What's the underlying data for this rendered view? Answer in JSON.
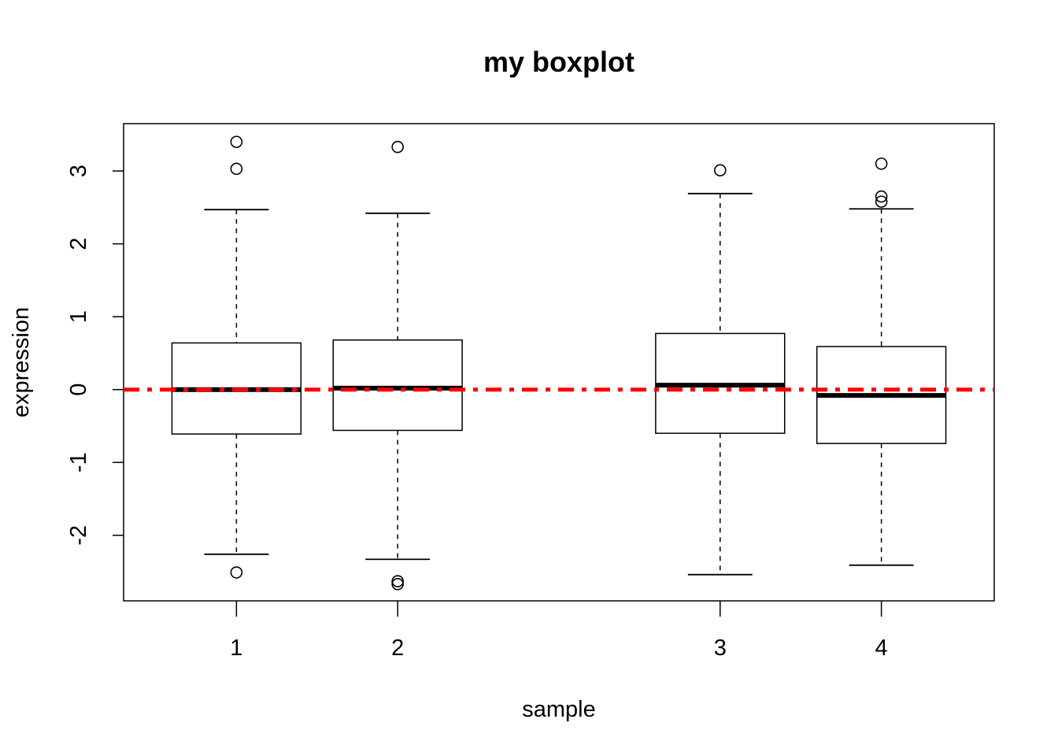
{
  "chart_data": {
    "type": "boxplot",
    "title": "my boxplot",
    "xlabel": "sample",
    "ylabel": "expression",
    "xlim": [
      0.3,
      5.7
    ],
    "ylim": [
      -2.9,
      3.65
    ],
    "y_ticks": [
      -2,
      -1,
      0,
      1,
      2,
      3
    ],
    "x_ticks": [
      {
        "label": "1",
        "at": 1
      },
      {
        "label": "2",
        "at": 2
      },
      {
        "label": "3",
        "at": 4
      },
      {
        "label": "4",
        "at": 5
      }
    ],
    "box_width": 0.8,
    "boxes": [
      {
        "label": "1",
        "at": 1,
        "whisker_low": -2.26,
        "q1": -0.61,
        "median": 0.0,
        "q3": 0.64,
        "whisker_high": 2.47,
        "outliers": [
          3.4,
          3.03,
          -2.51
        ]
      },
      {
        "label": "2",
        "at": 2,
        "whisker_low": -2.33,
        "q1": -0.56,
        "median": 0.02,
        "q3": 0.68,
        "whisker_high": 2.42,
        "outliers": [
          3.33,
          -2.63,
          -2.67
        ]
      },
      {
        "label": "3",
        "at": 4,
        "whisker_low": -2.54,
        "q1": -0.6,
        "median": 0.06,
        "q3": 0.77,
        "whisker_high": 2.69,
        "outliers": [
          3.01
        ]
      },
      {
        "label": "4",
        "at": 5,
        "whisker_low": -2.41,
        "q1": -0.74,
        "median": -0.08,
        "q3": 0.59,
        "whisker_high": 2.48,
        "outliers": [
          3.1,
          2.65,
          2.58
        ]
      }
    ],
    "reference_line": {
      "y": 0,
      "color": "#ff0000",
      "style": "dash-dot"
    }
  }
}
